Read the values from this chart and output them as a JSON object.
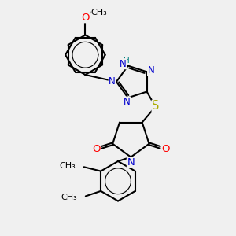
{
  "bg_color": "#f0f0f0",
  "bond_color": "#000000",
  "bond_width": 1.5,
  "atom_colors": {
    "N": "#0000cd",
    "O": "#ff0000",
    "S": "#aaaa00",
    "H": "#008080",
    "C": "#000000"
  },
  "font_size": 8.5,
  "fig_size": [
    3.0,
    3.0
  ],
  "dpi": 100,
  "xlim": [
    0,
    10
  ],
  "ylim": [
    0,
    10
  ]
}
